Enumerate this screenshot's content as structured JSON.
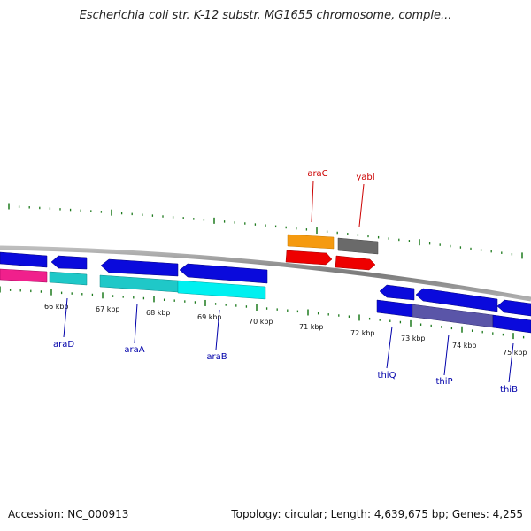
{
  "title": "Escherichia coli str. K-12 substr. MG1655 chromosome, comple...",
  "accession": "Accession: NC_000913",
  "summary": "Topology: circular; Length: 4,639,675 bp; Genes: 4,255",
  "colors": {
    "backbone": "#8a8a8a",
    "tick": "#1e7a1e",
    "forward_label": "#cc0000",
    "reverse_label": "#0000aa",
    "cds_blue": "#0a0adc",
    "cds_teal": "#1fc8c8",
    "cds_cyan": "#00f0f0",
    "cds_orange": "#f59a10",
    "cds_grey": "#6a6a6a",
    "cds_red": "#ee0000",
    "cds_pink": "#f0208c",
    "cds_slate": "#5a55a8"
  },
  "kbp_labels": [
    "66 kbp",
    "67 kbp",
    "68 kbp",
    "69 kbp",
    "70 kbp",
    "71 kbp",
    "72 kbp",
    "73 kbp",
    "74 kbp",
    "75 kbp"
  ],
  "gene_labels": {
    "forward": [
      "araC",
      "yabI"
    ],
    "reverse": [
      "araD",
      "araA",
      "araB",
      "thiQ",
      "thiP",
      "thiB"
    ]
  }
}
